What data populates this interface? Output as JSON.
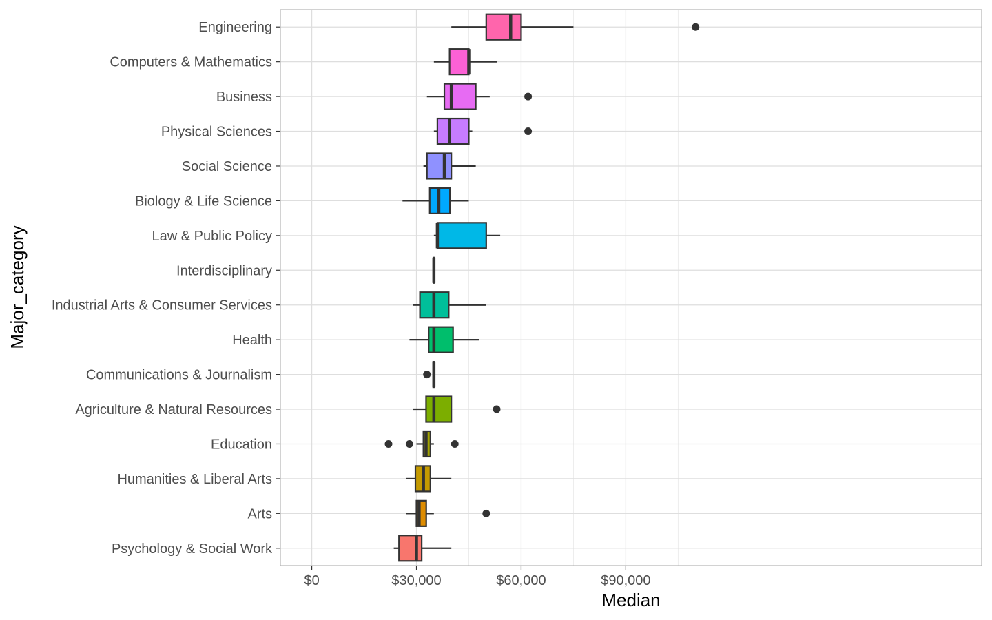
{
  "chart_data": {
    "type": "boxplot",
    "title": "",
    "xlabel": "Median",
    "ylabel": "Major_category",
    "xlim": [
      -9000,
      192000
    ],
    "x_ticks": [
      {
        "value": 0,
        "label": "$0"
      },
      {
        "value": 30000,
        "label": "$30,000"
      },
      {
        "value": 60000,
        "label": "$60,000"
      },
      {
        "value": 90000,
        "label": "$90,000"
      }
    ],
    "grid": true,
    "legend": "none",
    "categories": [
      {
        "name": "Engineering",
        "color": "#FF65AC",
        "whisker_low": 40000,
        "q1": 50000,
        "median": 57000,
        "q3": 60000,
        "whisker_high": 75000,
        "outliers": [
          110000
        ]
      },
      {
        "name": "Computers & Mathematics",
        "color": "#FC61D5",
        "whisker_low": 35000,
        "q1": 39500,
        "median": 45000,
        "q3": 45000,
        "whisker_high": 53000,
        "outliers": []
      },
      {
        "name": "Business",
        "color": "#E76BF3",
        "whisker_low": 33000,
        "q1": 38000,
        "median": 40000,
        "q3": 47000,
        "whisker_high": 51000,
        "outliers": [
          62000
        ]
      },
      {
        "name": "Physical Sciences",
        "color": "#C77CFF",
        "whisker_low": 35000,
        "q1": 36000,
        "median": 39500,
        "q3": 45000,
        "whisker_high": 46000,
        "outliers": [
          62000
        ]
      },
      {
        "name": "Social Science",
        "color": "#8F91FF",
        "whisker_low": 32000,
        "q1": 33000,
        "median": 38000,
        "q3": 40000,
        "whisker_high": 47000,
        "outliers": []
      },
      {
        "name": "Biology & Life Science",
        "color": "#00A9FF",
        "whisker_low": 26000,
        "q1": 33800,
        "median": 36400,
        "q3": 39600,
        "whisker_high": 45000,
        "outliers": []
      },
      {
        "name": "Law & Public Policy",
        "color": "#00B8E7",
        "whisker_low": 35000,
        "q1": 36000,
        "median": 36000,
        "q3": 50000,
        "whisker_high": 54000,
        "outliers": []
      },
      {
        "name": "Interdisciplinary",
        "color": "#00C0B8",
        "whisker_low": 35000,
        "q1": 35000,
        "median": 35000,
        "q3": 35000,
        "whisker_high": 35000,
        "outliers": []
      },
      {
        "name": "Industrial Arts & Consumer Services",
        "color": "#00BF9A",
        "whisker_low": 29000,
        "q1": 31000,
        "median": 35000,
        "q3": 39250,
        "whisker_high": 50000,
        "outliers": []
      },
      {
        "name": "Health",
        "color": "#00BE6C",
        "whisker_low": 28000,
        "q1": 33500,
        "median": 35000,
        "q3": 40500,
        "whisker_high": 48000,
        "outliers": []
      },
      {
        "name": "Communications & Journalism",
        "color": "#00BA38",
        "whisker_low": 34800,
        "q1": 34800,
        "median": 35000,
        "q3": 35000,
        "whisker_high": 35000,
        "outliers": [
          33000
        ]
      },
      {
        "name": "Agriculture & Natural Resources",
        "color": "#7CAE00",
        "whisker_low": 29000,
        "q1": 32750,
        "median": 35000,
        "q3": 40000,
        "whisker_high": 40000,
        "outliers": [
          53000
        ]
      },
      {
        "name": "Education",
        "color": "#A3A500",
        "whisker_low": 30000,
        "q1": 32000,
        "median": 32750,
        "q3": 34000,
        "whisker_high": 35000,
        "outliers": [
          22000,
          28000,
          41000
        ]
      },
      {
        "name": "Humanities & Liberal Arts",
        "color": "#C49A00",
        "whisker_low": 27000,
        "q1": 29700,
        "median": 32000,
        "q3": 34000,
        "whisker_high": 40000,
        "outliers": []
      },
      {
        "name": "Arts",
        "color": "#DE8C00",
        "whisker_low": 27000,
        "q1": 30000,
        "median": 30750,
        "q3": 32800,
        "whisker_high": 35000,
        "outliers": [
          50000
        ]
      },
      {
        "name": "Psychology & Social Work",
        "color": "#F8766D",
        "whisker_low": 23500,
        "q1": 25000,
        "median": 30000,
        "q3": 31500,
        "whisker_high": 40000,
        "outliers": []
      }
    ]
  }
}
